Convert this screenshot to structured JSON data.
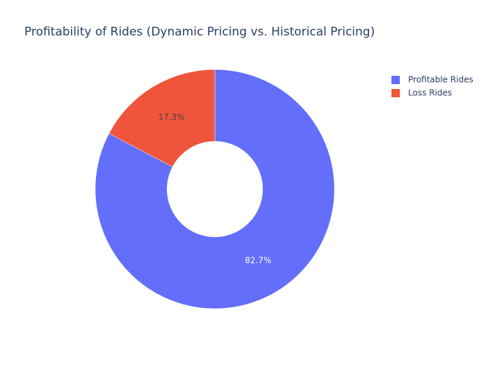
{
  "chart_data": {
    "type": "pie",
    "title": "Profitability of Rides (Dynamic Pricing vs. Historical Pricing)",
    "categories": [
      "Profitable Rides",
      "Loss Rides"
    ],
    "values": [
      82.7,
      17.3
    ],
    "value_labels": [
      "82.7%",
      "17.3%"
    ],
    "colors": [
      "#636efa",
      "#ef553b"
    ],
    "hole": 0.4,
    "legend": "top-right"
  }
}
